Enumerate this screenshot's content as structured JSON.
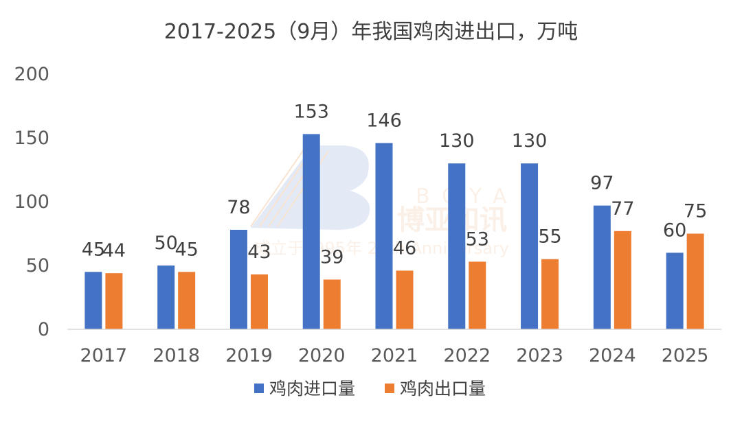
{
  "chart_data": {
    "type": "bar",
    "title": "2017-2025（9月）年我国鸡肉进出口，万吨",
    "categories": [
      "2017",
      "2018",
      "2019",
      "2020",
      "2021",
      "2022",
      "2023",
      "2024",
      "2025"
    ],
    "series": [
      {
        "name": "鸡肉进口量",
        "color": "#4472c4",
        "values": [
          45,
          50,
          78,
          153,
          146,
          130,
          130,
          97,
          60
        ]
      },
      {
        "name": "鸡肉出口量",
        "color": "#ed7d31",
        "values": [
          44,
          45,
          43,
          39,
          46,
          53,
          55,
          77,
          75
        ]
      }
    ],
    "yticks": [
      0,
      50,
      100,
      150,
      200
    ],
    "ylim": [
      0,
      200
    ],
    "grid": false,
    "legend_position": "bottom"
  },
  "watermark": {
    "brand": "BOYAR",
    "name_cn": "博亚和讯",
    "tagline": "成立于1995年 25th Anniversary",
    "color": "#f4b183"
  }
}
